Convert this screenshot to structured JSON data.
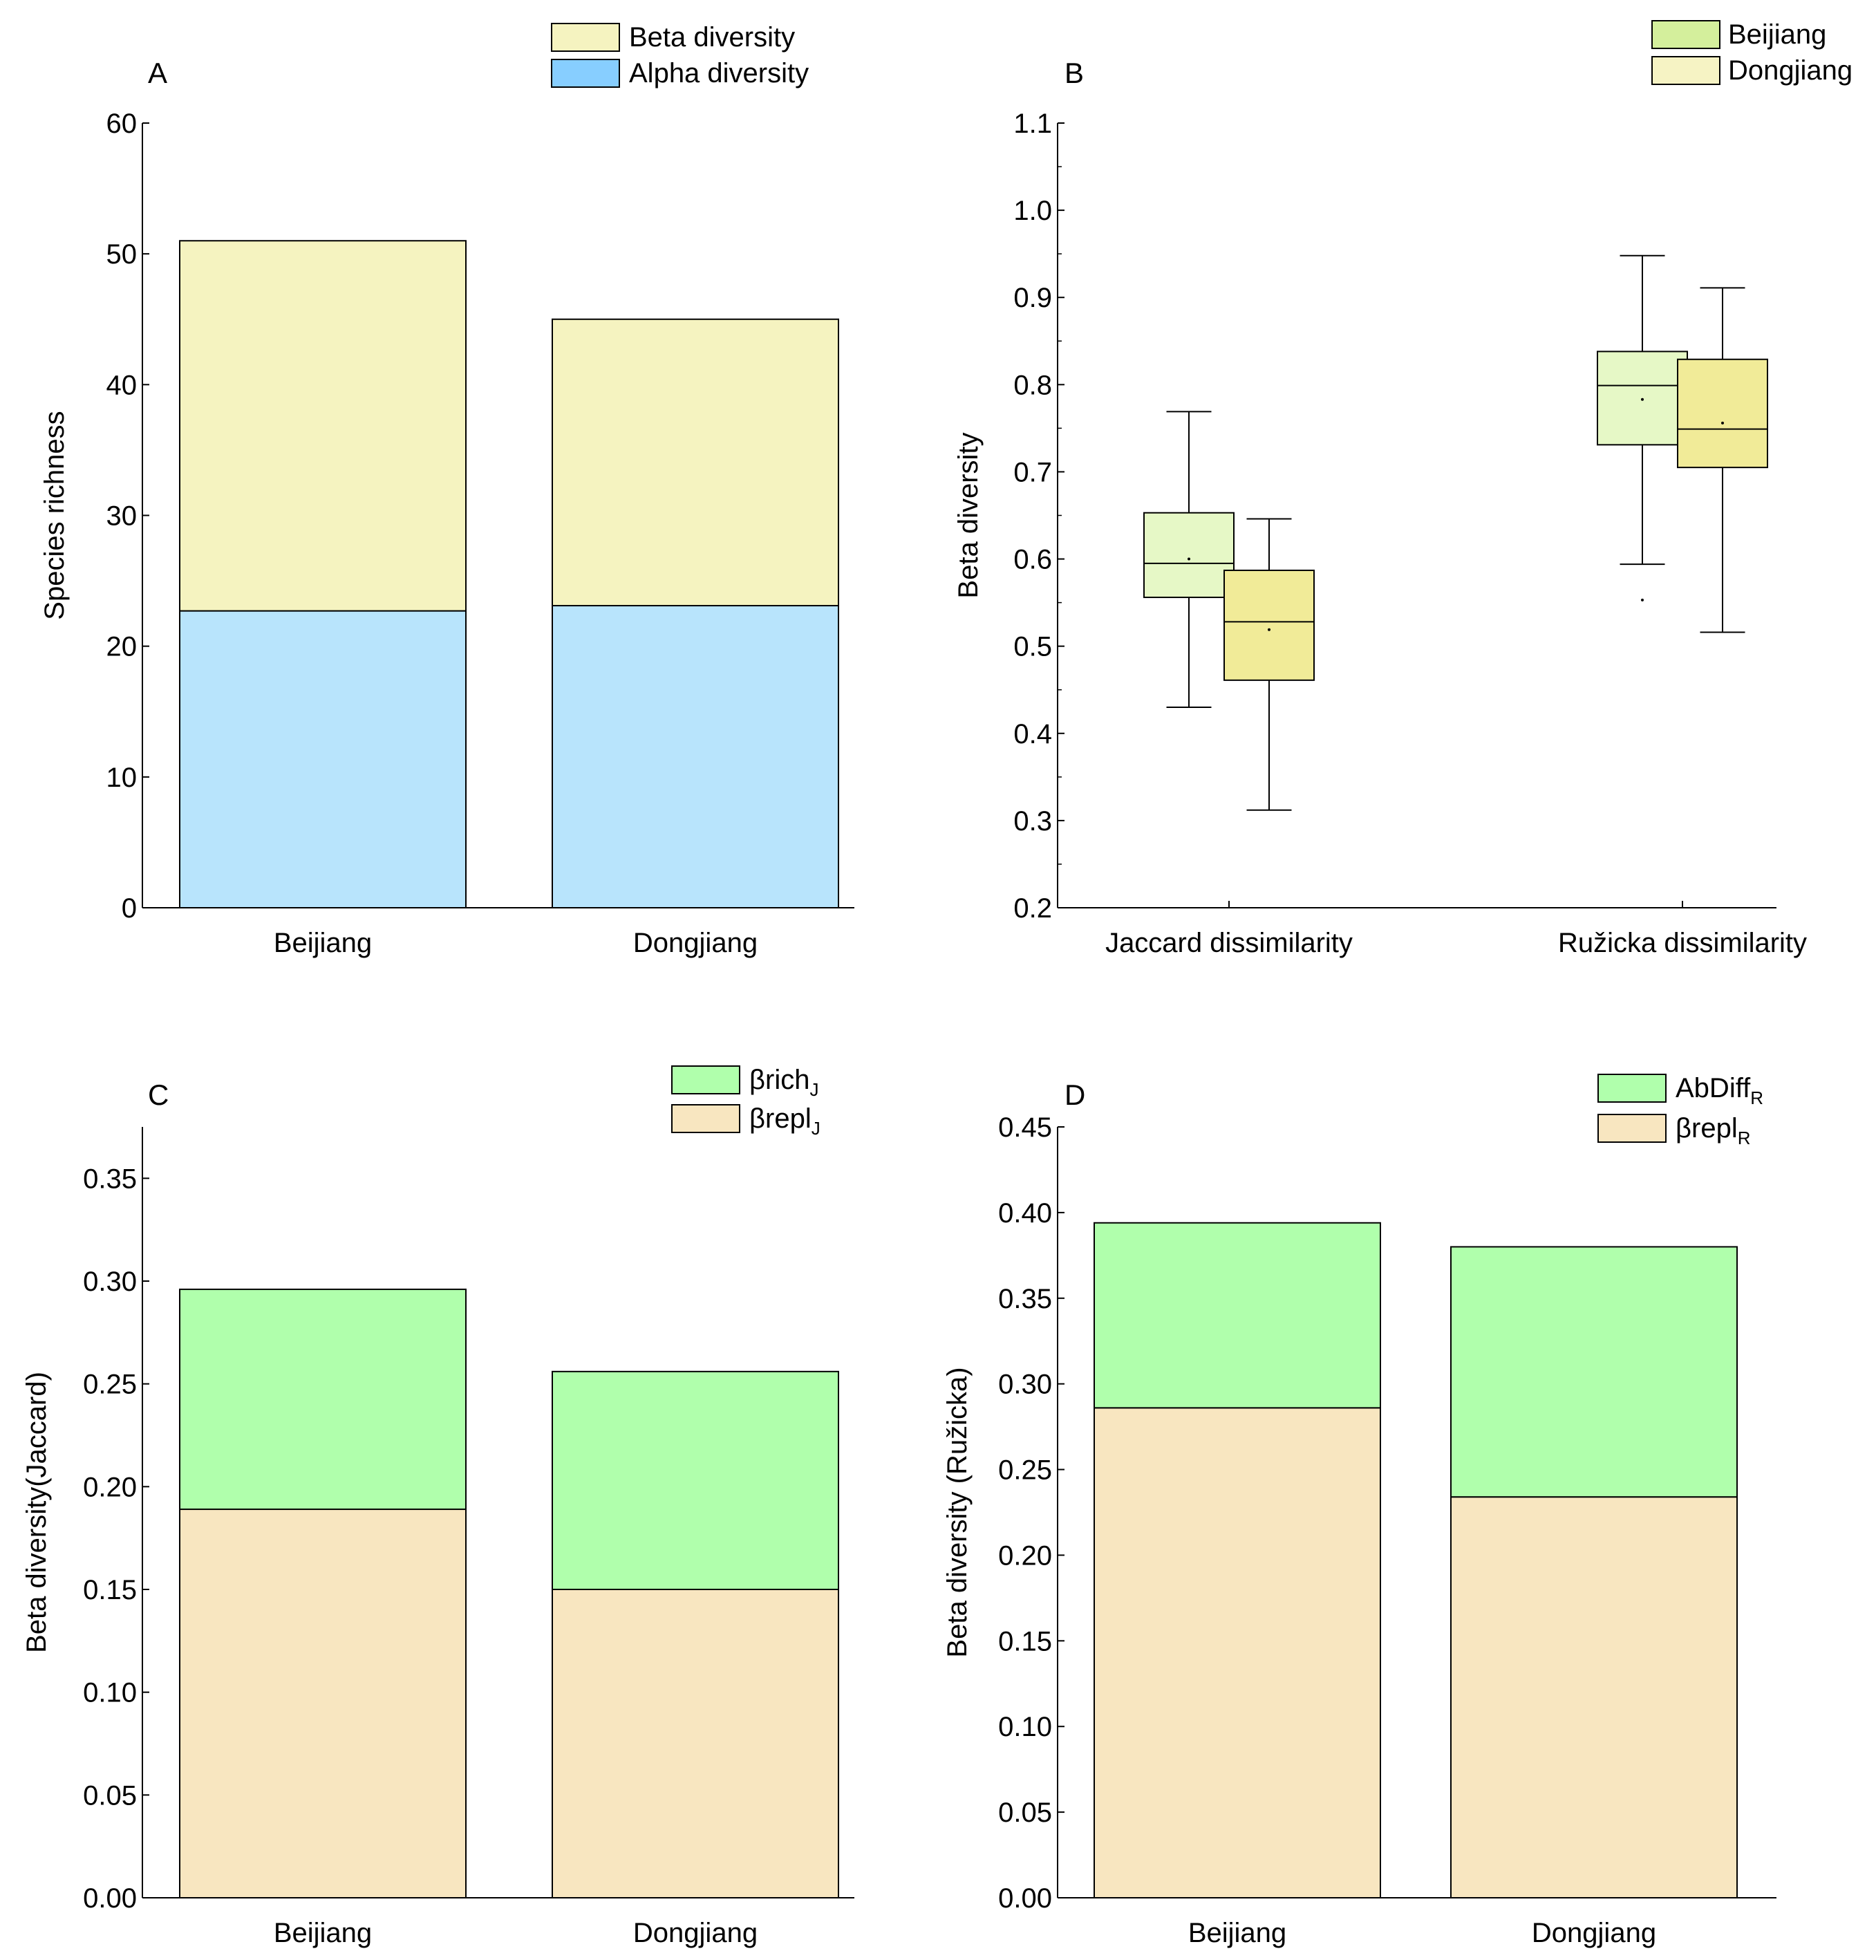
{
  "chart_data": [
    {
      "panel": "A",
      "type": "bar",
      "stacked": true,
      "categories": [
        "Beijiang",
        "Dongjiang"
      ],
      "ylabel": "Species richness",
      "xlabel": "",
      "ylim": [
        0,
        60
      ],
      "yticks": [
        0,
        10,
        20,
        30,
        40,
        50,
        60
      ],
      "tick_labels": [
        "0",
        "10",
        "20",
        "30",
        "40",
        "50",
        "60"
      ],
      "series": [
        {
          "name": "Alpha diversity",
          "legend": "Alpha diversity",
          "values": [
            22.7,
            23.1
          ],
          "color": "#b8e4fc"
        },
        {
          "name": "Beta diversity",
          "legend": "Beta diversity",
          "values": [
            28.3,
            21.9
          ],
          "color": "#f5f3c0"
        }
      ],
      "legend_colors": {
        "Beta diversity": "#f5f3c0",
        "Alpha diversity": "#87ceff"
      },
      "legend_position": "top-right"
    },
    {
      "panel": "B",
      "type": "box",
      "categories": [
        "Jaccard dissimilarity",
        "Ružicka dissimilarity"
      ],
      "ylabel": "Beta diversity",
      "xlabel": "",
      "ylim": [
        0.2,
        1.1
      ],
      "yticks": [
        0.2,
        0.3,
        0.4,
        0.5,
        0.6,
        0.7,
        0.8,
        0.9,
        1.0,
        1.1
      ],
      "tick_labels": [
        "0.2",
        "0.3",
        "0.4",
        "0.5",
        "0.6",
        "0.7",
        "0.8",
        "0.9",
        "1.0",
        "1.1"
      ],
      "series": [
        {
          "name": "Beijiang",
          "color": "#e6f8c6",
          "legend_color": "#d4ef9c",
          "boxes": [
            {
              "min": 0.43,
              "q1": 0.556,
              "median": 0.595,
              "q3": 0.653,
              "max": 0.769,
              "mean": 0.6,
              "outliers": []
            },
            {
              "min": 0.594,
              "q1": 0.731,
              "median": 0.799,
              "q3": 0.838,
              "max": 0.948,
              "mean": 0.783,
              "outliers": [
                0.553
              ]
            }
          ]
        },
        {
          "name": "Dongjiang",
          "color": "#f1eb98",
          "legend_color": "#f6f3c4",
          "boxes": [
            {
              "min": 0.312,
              "q1": 0.461,
              "median": 0.528,
              "q3": 0.587,
              "max": 0.646,
              "mean": 0.519,
              "outliers": []
            },
            {
              "min": 0.516,
              "q1": 0.705,
              "median": 0.749,
              "q3": 0.829,
              "max": 0.911,
              "mean": 0.756,
              "outliers": []
            }
          ]
        }
      ],
      "legend_position": "top-right"
    },
    {
      "panel": "C",
      "type": "bar",
      "stacked": true,
      "categories": [
        "Beijiang",
        "Dongjiang"
      ],
      "ylabel": "Beta diversity(Jaccard)",
      "xlabel": "",
      "ylim": [
        0,
        0.375
      ],
      "yticks": [
        0,
        0.05,
        0.1,
        0.15,
        0.2,
        0.25,
        0.3,
        0.35
      ],
      "tick_labels": [
        "0.00",
        "0.05",
        "0.10",
        "0.15",
        "0.20",
        "0.25",
        "0.30",
        "0.35"
      ],
      "series": [
        {
          "name": "βreplJ",
          "legend": "βrepl",
          "sub": "J",
          "values": [
            0.189,
            0.15
          ],
          "color": "#f8e6c0"
        },
        {
          "name": "βrichJ",
          "legend": "βrich",
          "sub": "J",
          "values": [
            0.107,
            0.106
          ],
          "color": "#b0ffac"
        }
      ],
      "legend_order": [
        "βrichJ",
        "βreplJ"
      ],
      "legend_position": "top-right"
    },
    {
      "panel": "D",
      "type": "bar",
      "stacked": true,
      "categories": [
        "Beijiang",
        "Dongjiang"
      ],
      "ylabel": "Beta diversity (Ružicka)",
      "xlabel": "",
      "ylim": [
        0,
        0.45
      ],
      "yticks": [
        0,
        0.05,
        0.1,
        0.15,
        0.2,
        0.25,
        0.3,
        0.35,
        0.4,
        0.45
      ],
      "tick_labels": [
        "0.00",
        "0.05",
        "0.10",
        "0.15",
        "0.20",
        "0.25",
        "0.30",
        "0.35",
        "0.40",
        "0.45"
      ],
      "series": [
        {
          "name": "βreplR",
          "legend": "βrepl",
          "sub": "R",
          "values": [
            0.286,
            0.234
          ],
          "color": "#f8e6c0"
        },
        {
          "name": "AbDiffR",
          "legend": "AbDiff",
          "sub": "R",
          "values": [
            0.108,
            0.146
          ],
          "color": "#b0ffac"
        }
      ],
      "legend_order": [
        "AbDiffR",
        "βreplR"
      ],
      "legend_position": "top-right"
    }
  ]
}
